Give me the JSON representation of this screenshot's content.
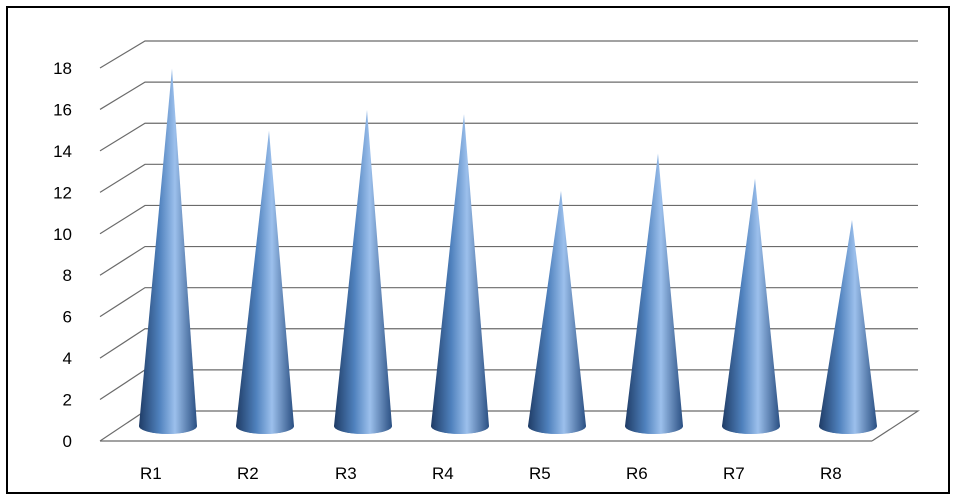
{
  "chart_data": {
    "type": "bar",
    "style": "3d-cone",
    "categories": [
      "R1",
      "R2",
      "R3",
      "R4",
      "R5",
      "R6",
      "R7",
      "R8"
    ],
    "series": [
      {
        "values": [
          16.5,
          13.5,
          14.5,
          14.3,
          10.6,
          12.4,
          11.2,
          9.2
        ]
      }
    ],
    "yticks": [
      "0",
      "2",
      "4",
      "6",
      "8",
      "10",
      "12",
      "14",
      "16",
      "18"
    ],
    "ylim": [
      0,
      18
    ],
    "grid": true,
    "legend": "none",
    "colors": {
      "cone_light": "#9cc0ec",
      "cone_mid": "#4f81bd",
      "cone_dark": "#1f3c66",
      "grid": "#6b6b6b",
      "frame": "#000000"
    }
  }
}
